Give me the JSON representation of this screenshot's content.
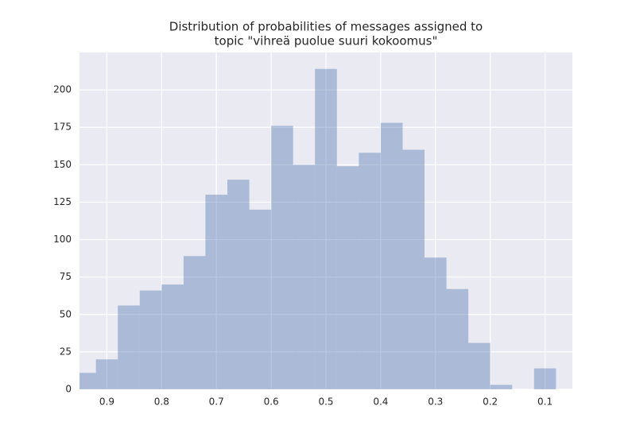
{
  "chart_data": {
    "type": "histogram",
    "title": [
      "Distribution of probabilities of messages assigned to",
      "topic \"vihreä puolue suuri kokoomus\""
    ],
    "bins": [
      0.08,
      0.12,
      0.16,
      0.2,
      0.24,
      0.28,
      0.32,
      0.36,
      0.4,
      0.44,
      0.48,
      0.52,
      0.56,
      0.6,
      0.64,
      0.68,
      0.72,
      0.76,
      0.8,
      0.84,
      0.88,
      0.92,
      0.96
    ],
    "counts": [
      14,
      0,
      3,
      31,
      67,
      88,
      160,
      178,
      158,
      149,
      214,
      150,
      176,
      120,
      140,
      130,
      89,
      70,
      66,
      56,
      20,
      11
    ],
    "color": "#4c72b0",
    "alpha": 0.4,
    "xlim": [
      0.95,
      0.05
    ],
    "xticks": [
      0.9,
      0.8,
      0.7,
      0.6,
      0.5,
      0.4,
      0.3,
      0.2,
      0.1
    ],
    "ylim": [
      0,
      225
    ],
    "yticks": [
      0,
      25,
      50,
      75,
      100,
      125,
      150,
      175,
      200
    ],
    "grid": true
  }
}
